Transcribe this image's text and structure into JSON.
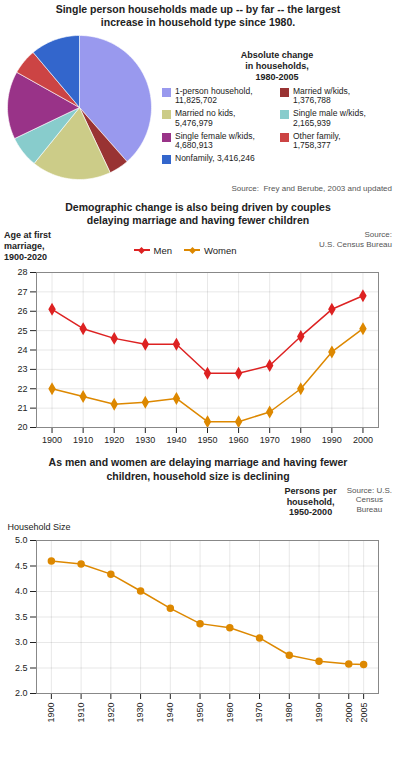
{
  "chart_data": [
    {
      "type": "pie",
      "title": "Single person households made up -- by far -- the largest\nincrease in household type since 1980.",
      "categories": [
        "1-person household,\n11,825,702",
        "Married w/kids,\n1,376,788",
        "Married no kids,\n5,476,979",
        "Single male w/kids,\n2,165,939",
        "Single female w/kids,\n4,680,913",
        "Other family,\n1,758,377",
        "Nonfamily, 3,416,246"
      ],
      "values": [
        11825702,
        1376788,
        5476979,
        2165939,
        4680913,
        1758377,
        3416246
      ],
      "colors": [
        "#9999ee",
        "#993333",
        "#cccc88",
        "#88cccc",
        "#993388",
        "#cc4444",
        "#3366cc"
      ],
      "legend": "right",
      "annotations": [
        "Absolute change\nin households,\n1980-2005",
        "Source:  Frey and Berube, 2003 and updated"
      ]
    },
    {
      "type": "line",
      "title": "Demographic change is also being driven by couples\ndelaying marriage and having fewer children",
      "x": [
        1900,
        1910,
        1920,
        1930,
        1940,
        1950,
        1960,
        1970,
        1980,
        1990,
        2000
      ],
      "series": [
        {
          "name": "Men",
          "color": "#dd2222",
          "marker": "diamond",
          "values": [
            26.1,
            25.1,
            24.6,
            24.3,
            24.3,
            22.8,
            22.8,
            23.2,
            24.7,
            26.1,
            26.8
          ]
        },
        {
          "name": "Women",
          "color": "#dd8800",
          "marker": "diamond",
          "values": [
            22.0,
            21.6,
            21.2,
            21.3,
            21.5,
            20.3,
            20.3,
            20.8,
            22.0,
            23.9,
            25.1
          ]
        }
      ],
      "xlim": [
        1895,
        2005
      ],
      "xticks": [
        1900,
        1910,
        1920,
        1930,
        1940,
        1950,
        1960,
        1970,
        1980,
        1990,
        2000
      ],
      "ylim": [
        20,
        28
      ],
      "yticks": [
        20,
        21,
        22,
        23,
        24,
        25,
        26,
        27,
        28
      ],
      "ylabel": "Age at first\nmarriage,\n1900-2020",
      "grid": true,
      "legend": "top",
      "annotations": [
        "Source:\nU.S. Census Bureau"
      ]
    },
    {
      "type": "line",
      "title": "As men and women are delaying marriage and having fewer\nchildren, household size is declining",
      "x": [
        1900,
        1910,
        1920,
        1930,
        1940,
        1950,
        1960,
        1970,
        1980,
        1990,
        2000,
        2005
      ],
      "values": [
        4.6,
        4.54,
        4.34,
        4.01,
        3.67,
        3.37,
        3.29,
        3.09,
        2.75,
        2.63,
        2.58,
        2.57
      ],
      "color": "#dd8800",
      "marker": "circle",
      "xlim": [
        1895,
        2010
      ],
      "xticks": [
        1900,
        1910,
        1920,
        1930,
        1940,
        1950,
        1960,
        1970,
        1980,
        1990,
        2000,
        2005
      ],
      "ylim": [
        2.0,
        5.0
      ],
      "yticks": [
        {
          "value": 2,
          "label": "2.0"
        },
        2.5,
        {
          "value": 3,
          "label": "3.0"
        },
        3.5,
        {
          "value": 4,
          "label": "4.0"
        },
        4.5,
        {
          "value": 5,
          "label": "5.0"
        }
      ],
      "ylabel": "Household Size",
      "grid": true,
      "annotations": [
        "Persons per\nhousehold,\n1950-2000",
        "Source: U.S.\nCensus\nBureau"
      ]
    }
  ]
}
